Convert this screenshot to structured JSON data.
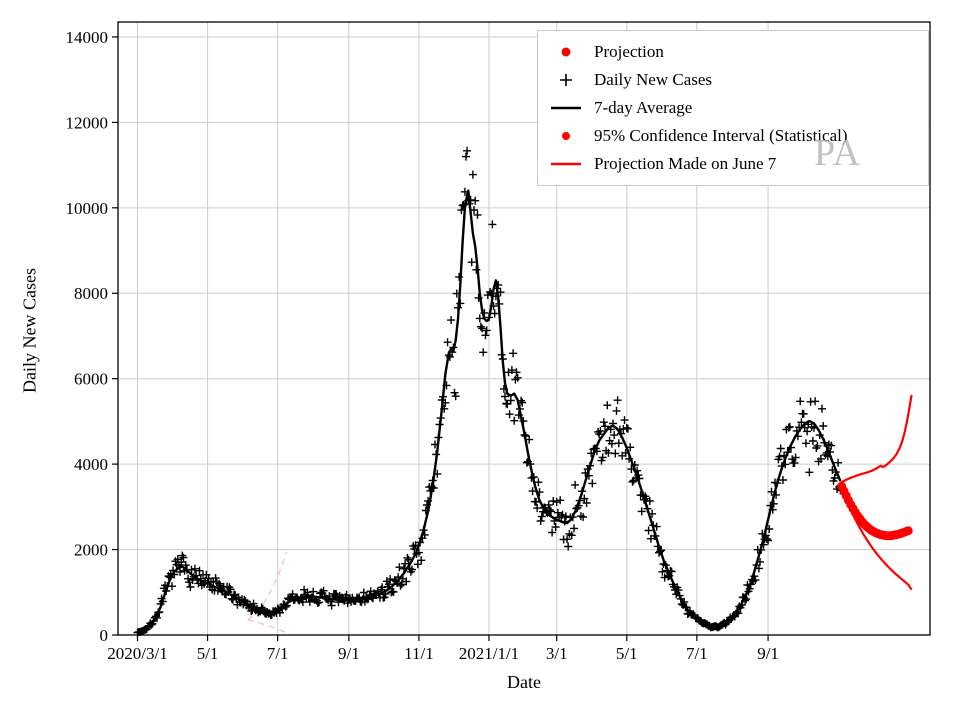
{
  "figure": {
    "watermark": "PA",
    "background": "#ffffff"
  },
  "colors": {
    "projection_red": "#ff0000",
    "data_black": "#000000",
    "grid": "#cccccc",
    "faded_projection_pink": "rgba(255,140,140,0.5)",
    "watermark_gray": "#b8b8b8"
  },
  "legend": {
    "items": [
      {
        "label": "Projection",
        "marker": "red-dot"
      },
      {
        "label": "Daily New Cases",
        "marker": "black-plus"
      },
      {
        "label": "7-day Average",
        "marker": "black-line"
      },
      {
        "label": "95% Confidence Interval (Statistical)",
        "marker": "red-dot-small"
      },
      {
        "label": "Projection Made on June 7",
        "marker": "red-line"
      }
    ]
  },
  "chart_data": {
    "type": "line",
    "title": "",
    "xlabel": "Date",
    "ylabel": "Daily New Cases",
    "x_axis": {
      "epoch": "2020-03-01",
      "domain_days": [
        -17,
        690
      ],
      "ticks": [
        {
          "day": 0,
          "label": "2020/3/1"
        },
        {
          "day": 61,
          "label": "5/1"
        },
        {
          "day": 122,
          "label": "7/1"
        },
        {
          "day": 184,
          "label": "9/1"
        },
        {
          "day": 245,
          "label": "11/1"
        },
        {
          "day": 306,
          "label": "2021/1/1"
        },
        {
          "day": 365,
          "label": "3/1"
        },
        {
          "day": 426,
          "label": "5/1"
        },
        {
          "day": 487,
          "label": "7/1"
        },
        {
          "day": 549,
          "label": "9/1"
        }
      ]
    },
    "y_axis": {
      "lim": [
        0,
        14350
      ],
      "ticks": [
        0,
        2000,
        4000,
        6000,
        8000,
        10000,
        12000,
        14000
      ]
    },
    "grid": true,
    "legend_position": "upper right",
    "series": {
      "seven_day_average": {
        "name": "7-day Average",
        "style": "line",
        "width": 2.4,
        "points": [
          [
            0,
            60
          ],
          [
            4,
            90
          ],
          [
            8,
            150
          ],
          [
            12,
            260
          ],
          [
            16,
            420
          ],
          [
            20,
            650
          ],
          [
            24,
            980
          ],
          [
            28,
            1280
          ],
          [
            32,
            1480
          ],
          [
            36,
            1580
          ],
          [
            39,
            1600
          ],
          [
            42,
            1540
          ],
          [
            46,
            1440
          ],
          [
            50,
            1350
          ],
          [
            55,
            1270
          ],
          [
            61,
            1200
          ],
          [
            67,
            1130
          ],
          [
            73,
            1060
          ],
          [
            80,
            960
          ],
          [
            87,
            860
          ],
          [
            94,
            750
          ],
          [
            100,
            650
          ],
          [
            106,
            570
          ],
          [
            112,
            510
          ],
          [
            117,
            490
          ],
          [
            122,
            560
          ],
          [
            127,
            680
          ],
          [
            132,
            780
          ],
          [
            138,
            850
          ],
          [
            144,
            900
          ],
          [
            150,
            910
          ],
          [
            156,
            890
          ],
          [
            162,
            870
          ],
          [
            168,
            850
          ],
          [
            174,
            820
          ],
          [
            180,
            800
          ],
          [
            184,
            820
          ],
          [
            190,
            850
          ],
          [
            196,
            870
          ],
          [
            202,
            890
          ],
          [
            208,
            930
          ],
          [
            214,
            1000
          ],
          [
            220,
            1100
          ],
          [
            226,
            1250
          ],
          [
            232,
            1450
          ],
          [
            238,
            1700
          ],
          [
            242,
            1900
          ],
          [
            245,
            2100
          ],
          [
            249,
            2450
          ],
          [
            253,
            2900
          ],
          [
            257,
            3500
          ],
          [
            261,
            4300
          ],
          [
            265,
            5300
          ],
          [
            268,
            6100
          ],
          [
            271,
            6600
          ],
          [
            273,
            6700
          ],
          [
            275,
            6650
          ],
          [
            277,
            6900
          ],
          [
            279,
            7400
          ],
          [
            281,
            8200
          ],
          [
            283,
            9200
          ],
          [
            285,
            10000
          ],
          [
            287,
            10300
          ],
          [
            288,
            10400
          ],
          [
            290,
            9900
          ],
          [
            292,
            9400
          ],
          [
            294,
            9100
          ],
          [
            296,
            8600
          ],
          [
            298,
            8000
          ],
          [
            300,
            7600
          ],
          [
            302,
            7400
          ],
          [
            304,
            7350
          ],
          [
            306,
            7400
          ],
          [
            308,
            7700
          ],
          [
            310,
            8100
          ],
          [
            312,
            8300
          ],
          [
            314,
            7900
          ],
          [
            316,
            7200
          ],
          [
            318,
            6400
          ],
          [
            320,
            5900
          ],
          [
            322,
            5650
          ],
          [
            325,
            5600
          ],
          [
            328,
            5650
          ],
          [
            331,
            5500
          ],
          [
            334,
            5100
          ],
          [
            337,
            4700
          ],
          [
            340,
            4250
          ],
          [
            343,
            3850
          ],
          [
            346,
            3500
          ],
          [
            350,
            3150
          ],
          [
            354,
            2950
          ],
          [
            358,
            2820
          ],
          [
            362,
            2740
          ],
          [
            366,
            2690
          ],
          [
            370,
            2640
          ],
          [
            374,
            2620
          ],
          [
            378,
            2720
          ],
          [
            382,
            2950
          ],
          [
            386,
            3250
          ],
          [
            390,
            3600
          ],
          [
            394,
            3950
          ],
          [
            398,
            4300
          ],
          [
            402,
            4550
          ],
          [
            406,
            4700
          ],
          [
            410,
            4850
          ],
          [
            414,
            4900
          ],
          [
            418,
            4820
          ],
          [
            422,
            4620
          ],
          [
            426,
            4380
          ],
          [
            430,
            4080
          ],
          [
            434,
            3780
          ],
          [
            438,
            3460
          ],
          [
            442,
            3120
          ],
          [
            446,
            2770
          ],
          [
            450,
            2420
          ],
          [
            454,
            2070
          ],
          [
            458,
            1760
          ],
          [
            462,
            1500
          ],
          [
            466,
            1250
          ],
          [
            470,
            1020
          ],
          [
            474,
            810
          ],
          [
            478,
            630
          ],
          [
            482,
            490
          ],
          [
            487,
            380
          ],
          [
            491,
            300
          ],
          [
            495,
            240
          ],
          [
            500,
            200
          ],
          [
            505,
            195
          ],
          [
            510,
            235
          ],
          [
            515,
            330
          ],
          [
            520,
            480
          ],
          [
            525,
            680
          ],
          [
            530,
            950
          ],
          [
            535,
            1300
          ],
          [
            540,
            1760
          ],
          [
            545,
            2250
          ],
          [
            549,
            2700
          ],
          [
            553,
            3150
          ],
          [
            557,
            3560
          ],
          [
            561,
            3900
          ],
          [
            565,
            4200
          ],
          [
            569,
            4450
          ],
          [
            573,
            4660
          ],
          [
            577,
            4820
          ],
          [
            581,
            4950
          ],
          [
            585,
            5010
          ],
          [
            589,
            4950
          ],
          [
            593,
            4800
          ],
          [
            597,
            4590
          ],
          [
            601,
            4340
          ],
          [
            605,
            4060
          ],
          [
            609,
            3800
          ],
          [
            612,
            3600
          ]
        ]
      },
      "daily_new_cases": {
        "name": "Daily New Cases",
        "style": "plus-scatter",
        "generated_from": "seven_day_average",
        "day_range": [
          0,
          612
        ],
        "noise": {
          "seed": 7,
          "spread": 0.55,
          "clamp": [
            -0.24,
            0.26
          ]
        }
      },
      "projection": {
        "name": "Projection",
        "style": "dots",
        "dot_radius": 4.5,
        "points": [
          [
            613,
            3480
          ],
          [
            615,
            3370
          ],
          [
            617,
            3260
          ],
          [
            619,
            3150
          ],
          [
            621,
            3050
          ],
          [
            623,
            2960
          ],
          [
            625,
            2870
          ],
          [
            627,
            2790
          ],
          [
            629,
            2720
          ],
          [
            631,
            2650
          ],
          [
            633,
            2590
          ],
          [
            635,
            2540
          ],
          [
            637,
            2490
          ],
          [
            639,
            2450
          ],
          [
            641,
            2420
          ],
          [
            643,
            2390
          ],
          [
            645,
            2370
          ],
          [
            647,
            2350
          ],
          [
            649,
            2340
          ],
          [
            651,
            2330
          ],
          [
            653,
            2325
          ],
          [
            655,
            2325
          ],
          [
            657,
            2330
          ],
          [
            659,
            2340
          ],
          [
            661,
            2350
          ],
          [
            663,
            2365
          ],
          [
            665,
            2380
          ],
          [
            667,
            2400
          ],
          [
            669,
            2420
          ],
          [
            671,
            2440
          ]
        ]
      },
      "ci_upper": {
        "name": "95% Confidence Interval upper",
        "style": "line",
        "width": 2.2,
        "points": [
          [
            612,
            3560
          ],
          [
            616,
            3620
          ],
          [
            620,
            3670
          ],
          [
            624,
            3710
          ],
          [
            628,
            3750
          ],
          [
            632,
            3780
          ],
          [
            636,
            3810
          ],
          [
            640,
            3850
          ],
          [
            644,
            3910
          ],
          [
            647,
            3960
          ],
          [
            649,
            3930
          ],
          [
            652,
            3980
          ],
          [
            655,
            4050
          ],
          [
            658,
            4130
          ],
          [
            661,
            4240
          ],
          [
            664,
            4400
          ],
          [
            666,
            4550
          ],
          [
            668,
            4750
          ],
          [
            670,
            5000
          ],
          [
            672,
            5300
          ],
          [
            674,
            5620
          ]
        ]
      },
      "ci_lower": {
        "name": "95% Confidence Interval lower",
        "style": "line",
        "width": 2.2,
        "points": [
          [
            612,
            3480
          ],
          [
            616,
            3230
          ],
          [
            620,
            2990
          ],
          [
            624,
            2760
          ],
          [
            628,
            2550
          ],
          [
            632,
            2360
          ],
          [
            636,
            2190
          ],
          [
            640,
            2030
          ],
          [
            644,
            1890
          ],
          [
            648,
            1760
          ],
          [
            652,
            1640
          ],
          [
            656,
            1530
          ],
          [
            660,
            1430
          ],
          [
            664,
            1340
          ],
          [
            668,
            1250
          ],
          [
            671,
            1180
          ],
          [
            674,
            1060
          ]
        ]
      },
      "june7_projection_faded": {
        "name": "Projection Made on June 7 (faded fan)",
        "style": "dashed-line",
        "width": 1.6,
        "dash": "6 5",
        "branches": [
          [
            [
              96,
              360
            ],
            [
              103,
              500
            ],
            [
              110,
              740
            ],
            [
              117,
              1080
            ],
            [
              124,
              1500
            ],
            [
              130,
              1950
            ]
          ],
          [
            [
              96,
              360
            ],
            [
              103,
              310
            ],
            [
              110,
              250
            ],
            [
              117,
              185
            ],
            [
              124,
              115
            ],
            [
              130,
              55
            ]
          ]
        ]
      }
    }
  }
}
